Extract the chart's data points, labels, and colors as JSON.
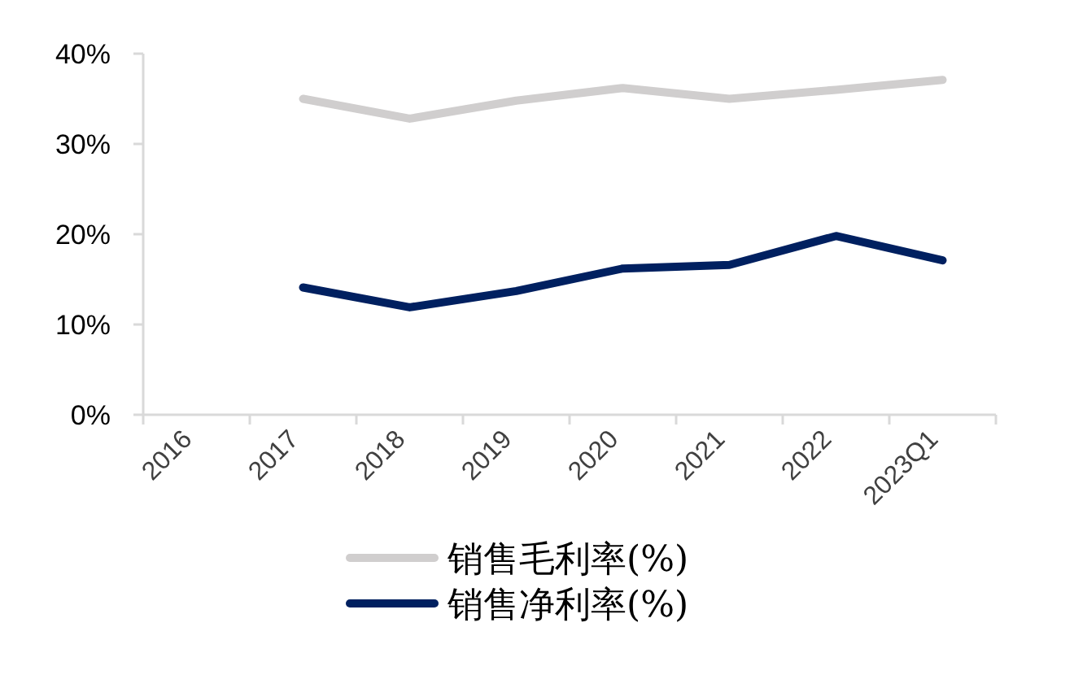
{
  "chart_data": {
    "type": "line",
    "categories": [
      "2016",
      "2017",
      "2018",
      "2019",
      "2020",
      "2021",
      "2022",
      "2023Q1"
    ],
    "series": [
      {
        "name": "销售毛利率(%)",
        "color": "#d0cece",
        "values": [
          null,
          35.0,
          32.8,
          34.8,
          36.2,
          35.0,
          36.0,
          37.1
        ]
      },
      {
        "name": "销售净利率(%)",
        "color": "#002060",
        "values": [
          null,
          14.1,
          11.9,
          13.7,
          16.2,
          16.6,
          19.8,
          17.1
        ]
      }
    ],
    "ylim": [
      0,
      40
    ],
    "yticks": [
      {
        "value": 0,
        "label": "0%"
      },
      {
        "value": 10,
        "label": "10%"
      },
      {
        "value": 20,
        "label": "20%"
      },
      {
        "value": 30,
        "label": "30%"
      },
      {
        "value": 40,
        "label": "40%"
      }
    ],
    "grid": false,
    "legend": "bottom",
    "marker": "none",
    "line_style": "solid"
  }
}
